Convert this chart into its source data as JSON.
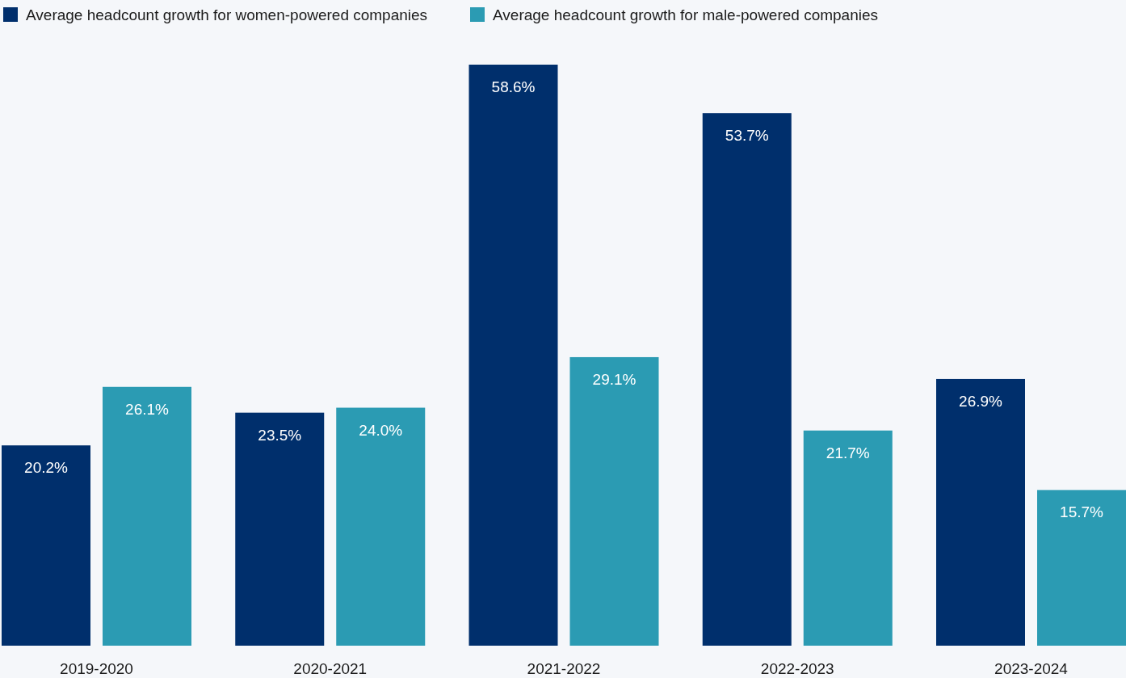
{
  "chart_data": {
    "type": "bar",
    "categories": [
      "2019-2020",
      "2020-2021",
      "2021-2022",
      "2022-2023",
      "2023-2024"
    ],
    "series": [
      {
        "name": "Average headcount growth for women-powered companies",
        "color": "#002f6c",
        "values": [
          20.2,
          23.5,
          58.6,
          53.7,
          26.9
        ],
        "value_labels": [
          "20.2%",
          "23.5%",
          "58.6%",
          "53.7%",
          "26.9%"
        ]
      },
      {
        "name": "Average headcount growth for male-powered companies",
        "color": "#2b9bb3",
        "values": [
          26.1,
          24.0,
          29.1,
          21.7,
          15.7
        ],
        "value_labels": [
          "26.1%",
          "24.0%",
          "29.1%",
          "21.7%",
          "15.7%"
        ]
      }
    ],
    "legend": "top left"
  }
}
